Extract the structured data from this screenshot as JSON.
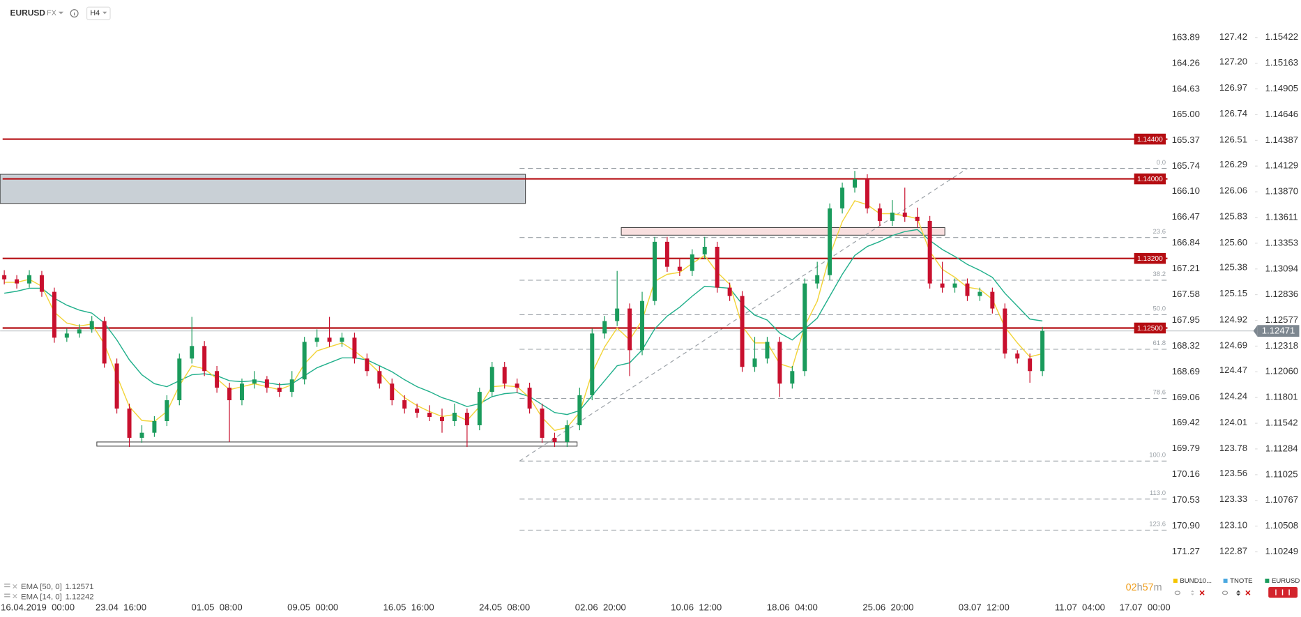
{
  "toolbar": {
    "symbol": "EURUSD",
    "market": "FX",
    "interval": "H4"
  },
  "chart_data": {
    "type": "candlestick",
    "xlim": [
      -0.333,
      93.0
    ],
    "xticks": [
      {
        "value": 2.67,
        "label": "16.04.2019  00:00"
      },
      {
        "value": 9.33,
        "label": "23.04  16:00"
      },
      {
        "value": 17,
        "label": "01.05  08:00"
      },
      {
        "value": 24.67,
        "label": "09.05  00:00"
      },
      {
        "value": 32.33,
        "label": "16.05  16:00"
      },
      {
        "value": 40,
        "label": "24.05  08:00"
      },
      {
        "value": 47.67,
        "label": "02.06  20:00"
      },
      {
        "value": 55.33,
        "label": "10.06  12:00"
      },
      {
        "value": 63,
        "label": "18.06  04:00"
      },
      {
        "value": 70.67,
        "label": "25.06  20:00"
      },
      {
        "value": 78.33,
        "label": "03.07  12:00"
      },
      {
        "value": 86,
        "label": "11.07  04:00"
      },
      {
        "value": 91.2,
        "label": "17.07  00:00"
      }
    ],
    "ylim": [
      1.10013,
      1.15799
    ],
    "yticks": [
      1.15422,
      1.15163,
      1.14905,
      1.14646,
      1.14387,
      1.14129,
      {
        "value": 1.1387,
        "label": "1.13870"
      },
      1.13611,
      1.13353,
      1.13094,
      1.12836,
      1.12577,
      1.12318,
      {
        "value": 1.1206,
        "label": "1.12060"
      },
      1.11801,
      1.11542,
      1.11284,
      1.11025,
      1.10767,
      1.10508,
      1.10249
    ],
    "extra_axes": [
      {
        "ylim": [
          171.605,
          163.352
        ],
        "ticks": [
          163.89,
          164.26,
          164.63,
          {
            "value": 165,
            "label": "165.00"
          },
          165.37,
          165.74,
          {
            "value": 166.1,
            "label": "166.10"
          },
          166.47,
          166.84,
          167.21,
          167.58,
          167.95,
          168.32,
          168.69,
          169.06,
          169.42,
          169.79,
          170.16,
          170.53,
          {
            "value": 170.9,
            "label": "170.90"
          },
          171.27
        ]
      },
      {
        "ylim": [
          122.66,
          127.75
        ],
        "ticks": [
          127.42,
          {
            "value": 127.2,
            "label": "127.20"
          },
          126.97,
          126.74,
          126.51,
          126.29,
          126.06,
          125.83,
          {
            "value": 125.6,
            "label": "125.60"
          },
          125.38,
          125.15,
          124.92,
          124.69,
          124.47,
          124.24,
          124.01,
          123.78,
          123.56,
          123.33,
          {
            "value": 123.1,
            "label": "123.10"
          },
          122.87
        ]
      }
    ],
    "up_color": "#1a9b5c",
    "down_color": "#c8102e",
    "open": [
      1.13032,
      1.1299,
      1.12948,
      1.13032,
      1.12864,
      1.12403,
      1.12445,
      1.12487,
      1.1257,
      1.12143,
      1.1169,
      1.11396,
      1.11447,
      1.11564,
      1.11774,
      1.12193,
      1.12319,
      1.12067,
      1.119,
      1.11774,
      1.11941,
      1.11983,
      1.119,
      1.11858,
      1.11983,
      1.12361,
      1.12403,
      1.12361,
      1.12403,
      1.12193,
      1.12067,
      1.11941,
      1.11774,
      1.1169,
      1.11648,
      1.11606,
      1.11564,
      1.11648,
      1.11522,
      1.11858,
      1.12109,
      1.11941,
      1.119,
      1.1169,
      1.11396,
      1.11354,
      1.11522,
      1.11824,
      1.12445,
      1.1257,
      1.12696,
      1.12277,
      1.12772,
      1.13367,
      1.13116,
      1.13074,
      1.13241,
      1.13317,
      1.12906,
      1.12822,
      1.12109,
      1.12193,
      1.12361,
      1.11941,
      1.12067,
      1.12948,
      1.13032,
      1.13703,
      1.13912,
      1.13996,
      1.13703,
      1.13577,
      1.13661,
      1.13619,
      1.13577,
      1.12948,
      1.12906,
      1.12948,
      1.12822,
      1.12864,
      1.12696,
      1.12243,
      1.12193,
      1.12067
    ],
    "high": [
      1.13082,
      1.13032,
      1.13082,
      1.13074,
      1.12906,
      1.12495,
      1.12537,
      1.12621,
      1.12612,
      1.12193,
      1.1174,
      1.11522,
      1.11614,
      1.11824,
      1.12243,
      1.12612,
      1.12369,
      1.12118,
      1.1195,
      1.11992,
      1.12067,
      1.12017,
      1.1195,
      1.12067,
      1.12411,
      1.12487,
      1.12612,
      1.12453,
      1.12453,
      1.12243,
      1.12118,
      1.11992,
      1.11824,
      1.1174,
      1.11723,
      1.1169,
      1.1174,
      1.1169,
      1.119,
      1.1216,
      1.1216,
      1.11992,
      1.1195,
      1.1174,
      1.11447,
      1.11573,
      1.119,
      1.12495,
      1.12621,
      1.13074,
      1.12747,
      1.12864,
      1.13417,
      1.13417,
      1.13191,
      1.13292,
      1.13417,
      1.13367,
      1.12956,
      1.12872,
      1.12411,
      1.12411,
      1.12411,
      1.12118,
      1.12998,
      1.13166,
      1.13753,
      1.13963,
      1.1408,
      1.14046,
      1.13753,
      1.13786,
      1.13912,
      1.13711,
      1.13627,
      1.13166,
      1.12998,
      1.12998,
      1.12906,
      1.12906,
      1.12747,
      1.12277,
      1.12243,
      1.12512
    ],
    "low": [
      1.12939,
      1.12897,
      1.12906,
      1.12814,
      1.12352,
      1.12361,
      1.12403,
      1.12453,
      1.12101,
      1.1164,
      1.11304,
      1.11346,
      1.11405,
      1.11514,
      1.11723,
      1.12143,
      1.12017,
      1.11849,
      1.11354,
      1.11723,
      1.11891,
      1.11849,
      1.11807,
      1.11807,
      1.11933,
      1.1231,
      1.1231,
      1.1231,
      1.12143,
      1.12017,
      1.11891,
      1.11723,
      1.1164,
      1.11598,
      1.11564,
      1.11447,
      1.11514,
      1.11304,
      1.11472,
      1.11807,
      1.11891,
      1.11849,
      1.1164,
      1.11346,
      1.11304,
      1.11304,
      1.11472,
      1.11774,
      1.12394,
      1.1252,
      1.12017,
      1.12227,
      1.1273,
      1.13065,
      1.13023,
      1.13023,
      1.13191,
      1.12856,
      1.12772,
      1.12059,
      1.12059,
      1.12143,
      1.11807,
      1.11891,
      1.12017,
      1.12897,
      1.12981,
      1.13652,
      1.13862,
      1.13652,
      1.13526,
      1.13526,
      1.13568,
      1.1351,
      1.12897,
      1.12856,
      1.12856,
      1.12772,
      1.12772,
      1.12646,
      1.12193,
      1.12143,
      1.1195,
      1.12017
    ],
    "close": [
      1.1299,
      1.12948,
      1.13032,
      1.12864,
      1.12403,
      1.12445,
      1.12487,
      1.1257,
      1.12143,
      1.1169,
      1.11396,
      1.11447,
      1.11564,
      1.11774,
      1.12193,
      1.12319,
      1.12067,
      1.119,
      1.11774,
      1.11941,
      1.11983,
      1.119,
      1.11858,
      1.11983,
      1.12361,
      1.12403,
      1.12361,
      1.12403,
      1.12193,
      1.12067,
      1.11941,
      1.11774,
      1.1169,
      1.11648,
      1.11606,
      1.11564,
      1.11648,
      1.11522,
      1.11858,
      1.12109,
      1.11941,
      1.119,
      1.1169,
      1.11396,
      1.11354,
      1.11522,
      1.11824,
      1.12445,
      1.1257,
      1.12696,
      1.12277,
      1.12772,
      1.13367,
      1.13116,
      1.13074,
      1.13241,
      1.13317,
      1.12906,
      1.12822,
      1.12109,
      1.12193,
      1.12361,
      1.11941,
      1.12067,
      1.12948,
      1.13032,
      1.13703,
      1.13912,
      1.13996,
      1.13703,
      1.13577,
      1.13661,
      1.13619,
      1.13577,
      1.12948,
      1.12906,
      1.12948,
      1.12822,
      1.12864,
      1.12696,
      1.12243,
      1.12193,
      1.12067,
      1.12471
    ],
    "series": [
      {
        "name": "EMA [50, 0]",
        "color": "#22b08c",
        "values": [
          1.1285,
          1.1287,
          1.129,
          1.129,
          1.128,
          1.1273,
          1.1268,
          1.1265,
          1.1255,
          1.1238,
          1.1218,
          1.1203,
          1.1194,
          1.1191,
          1.1197,
          1.1203,
          1.1204,
          1.1202,
          1.1197,
          1.1196,
          1.1197,
          1.1195,
          1.1193,
          1.1194,
          1.1202,
          1.121,
          1.1215,
          1.122,
          1.122,
          1.1218,
          1.1212,
          1.1206,
          1.1198,
          1.1191,
          1.1186,
          1.118,
          1.1176,
          1.1171,
          1.1174,
          1.1181,
          1.1184,
          1.1185,
          1.1181,
          1.1173,
          1.1165,
          1.1163,
          1.1167,
          1.1182,
          1.1197,
          1.1212,
          1.1215,
          1.1228,
          1.1249,
          1.1262,
          1.1271,
          1.1282,
          1.1292,
          1.1291,
          1.129,
          1.1274,
          1.1263,
          1.1258,
          1.1245,
          1.1238,
          1.1249,
          1.126,
          1.1282,
          1.1304,
          1.1323,
          1.1332,
          1.1337,
          1.1343,
          1.1347,
          1.1349,
          1.1338,
          1.1329,
          1.1322,
          1.1314,
          1.1308,
          1.1301,
          1.1285,
          1.1272,
          1.1259,
          1.12571
        ]
      },
      {
        "name": "EMA [14, 0]",
        "color": "#f2d43a",
        "values": [
          1.1296,
          1.1296,
          1.1299,
          1.1292,
          1.1266,
          1.1255,
          1.1252,
          1.1254,
          1.1234,
          1.1202,
          1.1171,
          1.1157,
          1.1156,
          1.1166,
          1.1192,
          1.1212,
          1.1209,
          1.1199,
          1.1188,
          1.1191,
          1.1194,
          1.1191,
          1.1188,
          1.1193,
          1.1214,
          1.1227,
          1.1231,
          1.1235,
          1.1227,
          1.1217,
          1.1205,
          1.1191,
          1.118,
          1.1172,
          1.1166,
          1.1161,
          1.1163,
          1.1157,
          1.1171,
          1.1191,
          1.1192,
          1.1191,
          1.118,
          1.116,
          1.1147,
          1.115,
          1.1165,
          1.1205,
          1.1231,
          1.125,
          1.1238,
          1.1258,
          1.1297,
          1.1304,
          1.1306,
          1.1315,
          1.1323,
          1.1306,
          1.1294,
          1.1252,
          1.1235,
          1.1235,
          1.1214,
          1.121,
          1.1252,
          1.1277,
          1.1323,
          1.1357,
          1.1378,
          1.1374,
          1.1365,
          1.1365,
          1.1363,
          1.136,
          1.1327,
          1.1309,
          1.1301,
          1.1291,
          1.1289,
          1.1279,
          1.1251,
          1.1235,
          1.1221,
          1.12242
        ]
      }
    ],
    "levels": [
      {
        "value": 1.144,
        "label": "1.14400"
      },
      {
        "value": 1.14,
        "label": "1.14000"
      },
      {
        "value": 1.132,
        "label": "1.13200"
      },
      {
        "value": 1.125,
        "label": "1.12500"
      }
    ],
    "level_color": "#b50d12",
    "current_price": {
      "value": 1.12471,
      "label": "1.12471"
    },
    "zones": [
      {
        "x_start": -0.333,
        "x_end": 41.67,
        "top": 1.14046,
        "bottom": 1.13753,
        "fill": "#c9d0d6"
      },
      {
        "x_start": 49.33,
        "x_end": 75.2,
        "top": 1.1351,
        "bottom": 1.13434,
        "fill": "#f8dfdf"
      },
      {
        "x_start": 7.4,
        "x_end": 45.8,
        "top": 1.11354,
        "bottom": 1.11312,
        "fill": "#ffffff"
      }
    ],
    "fib": {
      "x_start": 41.2,
      "x_end": 77.0,
      "high": 1.14105,
      "low": 1.11162,
      "levels": [
        {
          "value": 0,
          "label": "0.0"
        },
        23.6,
        38.2,
        {
          "value": 50,
          "label": "50.0"
        },
        61.8,
        78.6,
        {
          "value": 100,
          "label": "100.0"
        },
        {
          "value": 113,
          "label": "113.0"
        },
        123.6
      ]
    },
    "timer": [
      "02",
      "h",
      "57",
      "m"
    ],
    "instruments": [
      {
        "name": "BUND10...",
        "color": "#f5c400"
      },
      {
        "name": "TNOTE",
        "color": "#4aa8e0"
      },
      {
        "name": "EURUSD",
        "color": "#1a9b5c"
      }
    ]
  }
}
